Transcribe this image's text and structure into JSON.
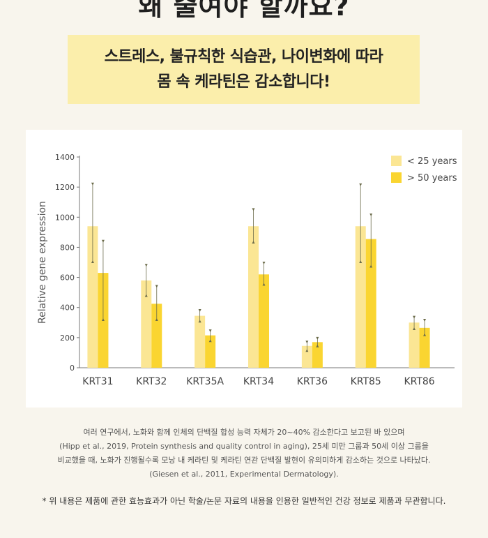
{
  "heading": "왜 줄여야 할까요?",
  "banner": {
    "line1": "스트레스, 불규칙한 식습관, 나이변화에 따라",
    "line2": "몸 속 케라틴은 감소합니다!"
  },
  "chart_data": {
    "type": "bar",
    "title": "",
    "xlabel": "",
    "ylabel": "Relative gene expression",
    "ylim": [
      0,
      1400
    ],
    "yticks": [
      0,
      200,
      400,
      600,
      800,
      1000,
      1200,
      1400
    ],
    "categories": [
      "KRT31",
      "KRT32",
      "KRT35A",
      "KRT34",
      "KRT36",
      "KRT85",
      "KRT86"
    ],
    "series": [
      {
        "name": "< 25 years",
        "color": "#fbe694",
        "values": [
          940,
          580,
          345,
          940,
          145,
          940,
          300
        ],
        "error": [
          [
            700,
            1225
          ],
          [
            475,
            685
          ],
          [
            305,
            385
          ],
          [
            830,
            1055
          ],
          [
            110,
            175
          ],
          [
            700,
            1220
          ],
          [
            255,
            340
          ]
        ]
      },
      {
        "name": "> 50 years",
        "color": "#fad531",
        "values": [
          630,
          425,
          215,
          620,
          170,
          855,
          265
        ],
        "error": [
          [
            315,
            845
          ],
          [
            315,
            545
          ],
          [
            175,
            250
          ],
          [
            550,
            700
          ],
          [
            140,
            200
          ],
          [
            670,
            1020
          ],
          [
            215,
            320
          ]
        ]
      }
    ],
    "legend": "top-right",
    "grid": false
  },
  "footnote": {
    "line1": "여러 연구에서, 노화와 함께 인체의 단백질 합성 능력 자체가 20~40% 감소한다고 보고된 바 있으며",
    "line2": "(Hipp et al., 2019, Protein synthesis and quality control in aging), 25세 미만 그룹과 50세 이상 그룹을",
    "line3": "비교했을 때, 노화가 진행될수록 모낭 내 케라틴 및 케라틴 연관 단백질 발현이 유의미하게 감소하는 것으로 나타났다.",
    "line4": "(Giesen et al., 2011, Experimental Dermatology)."
  },
  "disclaimer": "* 위 내용은 제품에 관한 효능효과가 아닌 학술/논문 자료의 내용을 인용한 일반적인 건강 정보로 제품과 무관합니다."
}
